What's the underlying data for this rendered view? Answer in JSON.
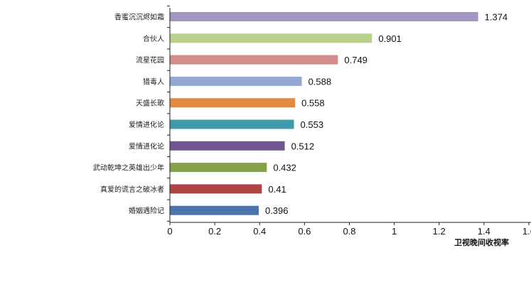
{
  "chart_data": {
    "type": "bar",
    "orientation": "horizontal",
    "title": "",
    "xlabel": "卫视晚间收视率",
    "ylabel": "",
    "xlim": [
      0,
      1.6
    ],
    "xticks": [
      "0",
      "0.2",
      "0.4",
      "0.6",
      "0.8",
      "1",
      "1.2",
      "1.4",
      "1.6"
    ],
    "grid": false,
    "categories": [
      "香蜜沉沉烬如霜",
      "合伙人",
      "流星花园",
      "猎毒人",
      "天盛长歌",
      "爱情进化论",
      "爱情进化论",
      "武动乾坤之英雄出少年",
      "真爱的谎言之破冰者",
      "婚姻遇险记"
    ],
    "values": [
      1.374,
      0.901,
      0.749,
      0.588,
      0.558,
      0.553,
      0.512,
      0.432,
      0.41,
      0.396
    ],
    "value_labels": [
      "1.374",
      "0.901",
      "0.749",
      "0.588",
      "0.558",
      "0.553",
      "0.512",
      "0.432",
      "0.41",
      "0.396"
    ],
    "colors": [
      "#a395c2",
      "#b9d18d",
      "#d48b8c",
      "#95a8d2",
      "#e08a43",
      "#3f9bab",
      "#735690",
      "#84a346",
      "#b04442",
      "#4a74ab"
    ]
  }
}
